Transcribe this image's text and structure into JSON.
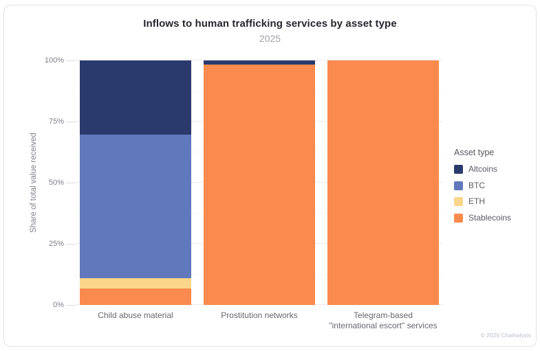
{
  "chart_data": {
    "type": "bar",
    "stacked": true,
    "orientation": "vertical",
    "title": "Inflows to human trafficking services by asset type",
    "subtitle": "2025",
    "xlabel": "",
    "ylabel": "Share of total value received",
    "units": "percent of total value received",
    "categories": [
      "Child abuse material",
      "Prostitution networks",
      "Telegram-based\n\"international escort\" services"
    ],
    "series": [
      {
        "name": "Altcoins",
        "color": "#2b3a6d",
        "values": [
          30.3,
          1.7,
          0
        ]
      },
      {
        "name": "BTC",
        "color": "#6278bc",
        "values": [
          58.7,
          0,
          0
        ]
      },
      {
        "name": "ETH",
        "color": "#fbd589",
        "values": [
          4.2,
          0,
          0
        ]
      },
      {
        "name": "Stablecoins",
        "color": "#fa8a4e",
        "values": [
          6.8,
          98.3,
          100
        ]
      }
    ],
    "stack_order_bottom_to_top": [
      "Stablecoins",
      "ETH",
      "BTC",
      "Altcoins"
    ],
    "legend_title": "Asset type",
    "legend_position": "right",
    "ylim": [
      0,
      100
    ],
    "y_tick_labels": [
      "0%",
      "25%",
      "50%",
      "75%",
      "100%"
    ],
    "y_tick_values": [
      0,
      25,
      50,
      75,
      100
    ],
    "minor_grid_values": [
      12.5,
      37.5,
      62.5,
      87.5
    ],
    "grid": true
  },
  "footer": {
    "copyright": "© 2026 Chainalysis"
  }
}
